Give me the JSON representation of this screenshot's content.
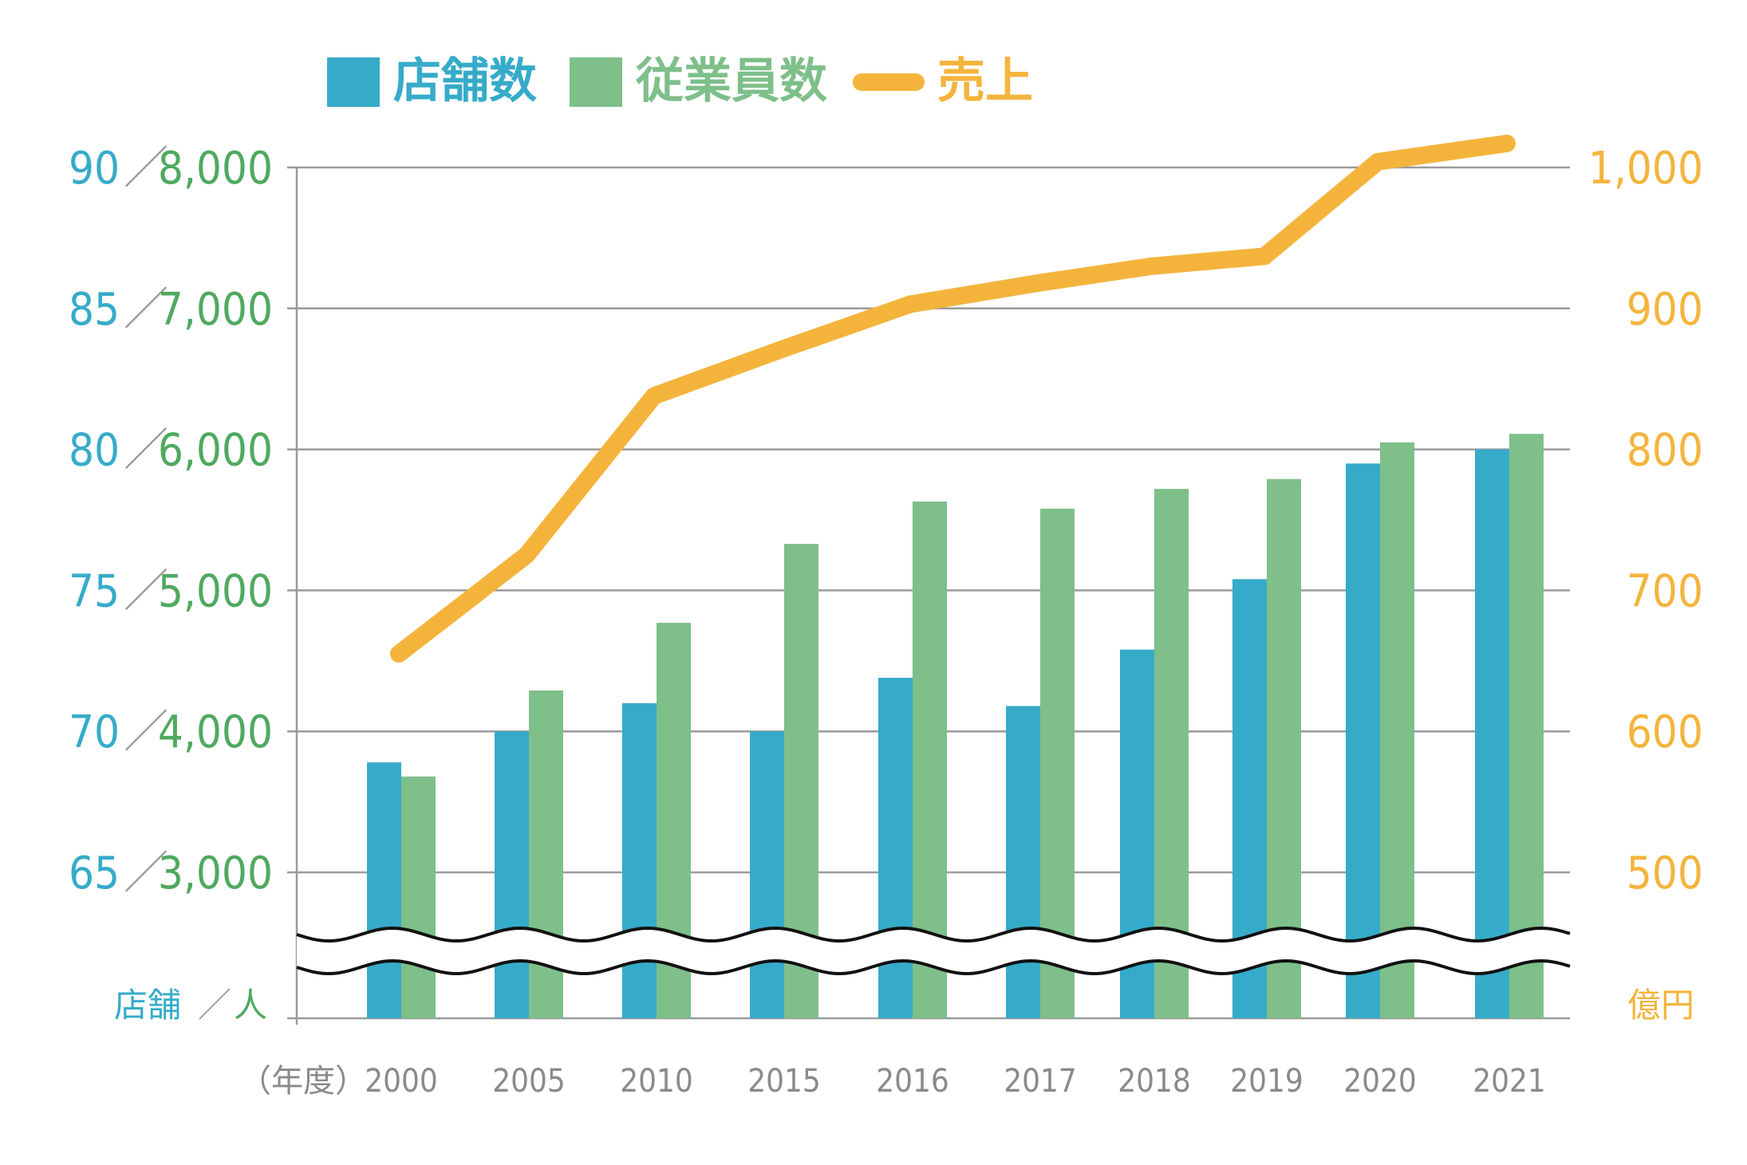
{
  "chart_data": {
    "type": "bar",
    "categories": [
      "2000",
      "2005",
      "2010",
      "2015",
      "2016",
      "2017",
      "2018",
      "2019",
      "2020",
      "2021"
    ],
    "x_prefix": "（年度）",
    "series": [
      {
        "name": "店舗数",
        "axis": "left_stores",
        "color": "#36abc9",
        "values": [
          68.9,
          70.0,
          71.0,
          70.0,
          71.9,
          70.9,
          72.9,
          75.4,
          79.5,
          80.0
        ]
      },
      {
        "name": "従業員数",
        "axis": "left_people",
        "color": "#7ebf8a",
        "values": [
          3680,
          4290,
          4770,
          5330,
          5630,
          5580,
          5720,
          5790,
          6050,
          6110
        ]
      },
      {
        "name": "売上",
        "axis": "right",
        "color": "#f4b43c",
        "type": "line",
        "values": [
          655,
          725,
          838,
          871,
          903,
          918,
          930,
          937,
          1004,
          1017
        ]
      }
    ],
    "axes": {
      "left_stores": {
        "ticks": [
          "90",
          "85",
          "80",
          "75",
          "70",
          "65"
        ],
        "range": [
          62.5,
          90
        ],
        "unit": "店舗",
        "color": "#36abc9"
      },
      "left_people": {
        "ticks": [
          "8,000",
          "7,000",
          "6,000",
          "5,000",
          "4,000",
          "3,000"
        ],
        "range": [
          2500,
          8000
        ],
        "unit": "人",
        "color": "#4fa95f"
      },
      "right": {
        "ticks": [
          "1,000",
          "900",
          "800",
          "700",
          "600",
          "500"
        ],
        "range": [
          450,
          1000
        ],
        "unit": "億円",
        "color": "#f4b43c"
      },
      "separator": "／"
    },
    "legend": [
      "店舗数",
      "従業員数",
      "売上"
    ],
    "axis_break": true,
    "grid": true
  }
}
